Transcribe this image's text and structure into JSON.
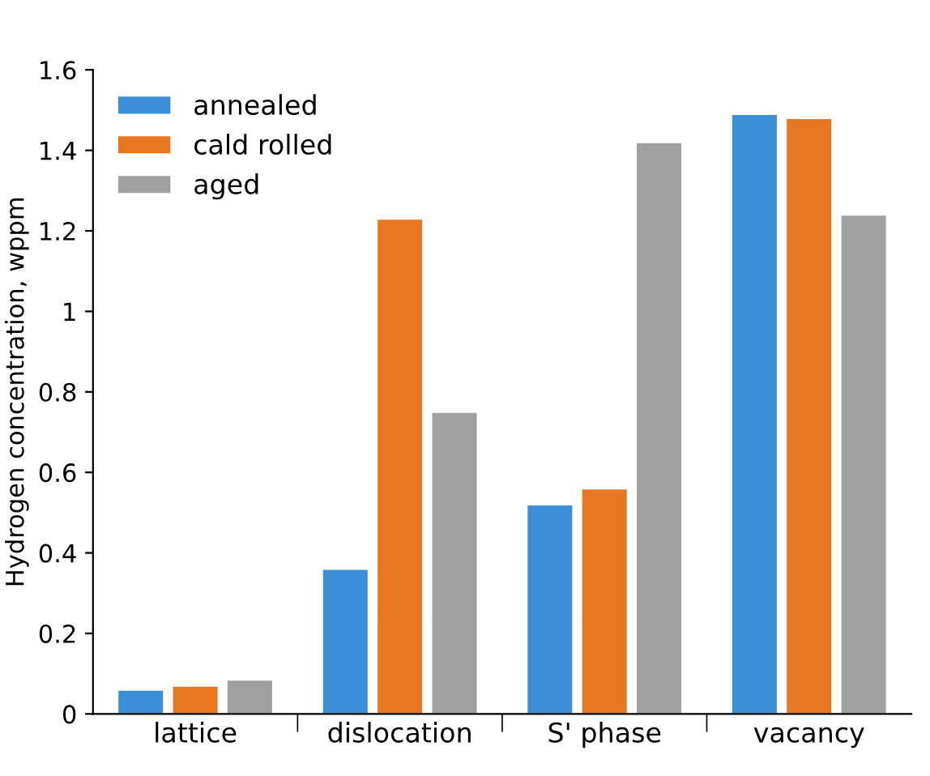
{
  "chart_data": {
    "type": "bar",
    "ylabel": "Hydrogen concentration, wppm",
    "categories": [
      "lattice",
      "dislocation",
      "S' phase",
      "vacancy"
    ],
    "series": [
      {
        "name": "annealed",
        "color": "#3a8fd6",
        "values": [
          0.06,
          0.36,
          0.52,
          1.49
        ]
      },
      {
        "name": "cald rolled",
        "color": "#e87722",
        "values": [
          0.07,
          1.23,
          0.56,
          1.48
        ]
      },
      {
        "name": "aged",
        "color": "#a0a0a0",
        "values": [
          0.085,
          0.75,
          1.42,
          1.24
        ]
      }
    ],
    "ylim": [
      0,
      1.6
    ],
    "yticks": [
      0,
      0.2,
      0.4,
      0.6,
      0.8,
      1,
      1.2,
      1.4,
      1.6
    ],
    "grid": false,
    "legend": "top left"
  }
}
